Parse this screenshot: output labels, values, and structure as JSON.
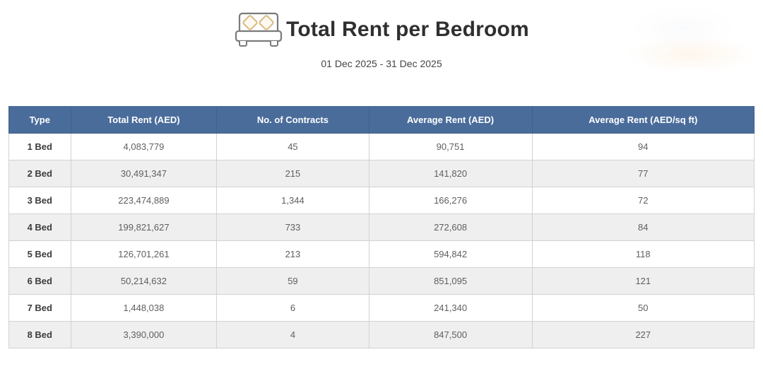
{
  "header": {
    "title": "Total Rent per Bedroom",
    "date_range": "01 Dec 2025 - 31 Dec 2025",
    "icon": "bed-icon"
  },
  "chart_data": {
    "type": "table",
    "title": "Total Rent per Bedroom",
    "subtitle": "01 Dec 2025 - 31 Dec 2025",
    "columns": [
      "Type",
      "Total Rent (AED)",
      "No. of Contracts",
      "Average Rent (AED)",
      "Average Rent (AED/sq ft)"
    ],
    "rows": [
      [
        "1 Bed",
        "4,083,779",
        "45",
        "90,751",
        "94"
      ],
      [
        "2 Bed",
        "30,491,347",
        "215",
        "141,820",
        "77"
      ],
      [
        "3 Bed",
        "223,474,889",
        "1,344",
        "166,276",
        "72"
      ],
      [
        "4 Bed",
        "199,821,627",
        "733",
        "272,608",
        "84"
      ],
      [
        "5 Bed",
        "126,701,261",
        "213",
        "594,842",
        "118"
      ],
      [
        "6 Bed",
        "50,214,632",
        "59",
        "851,095",
        "121"
      ],
      [
        "7 Bed",
        "1,448,038",
        "6",
        "241,340",
        "50"
      ],
      [
        "8 Bed",
        "3,390,000",
        "4",
        "847,500",
        "227"
      ]
    ]
  },
  "colors": {
    "header_bg": "#4a6c9b",
    "header_border": "#41618f",
    "header_text": "#ffffff",
    "row_bg": "#ffffff",
    "row_alt_bg": "#efefef",
    "border": "#d2d2d2",
    "title_text": "#2f2f2f",
    "subtitle_text": "#444444",
    "type_text": "#3c3c3c",
    "value_text": "#5f5f5f",
    "icon_stroke": "#7a7a7a",
    "pillow_stroke": "#d9b97e",
    "pillow_fill": "#fdf9f0"
  }
}
